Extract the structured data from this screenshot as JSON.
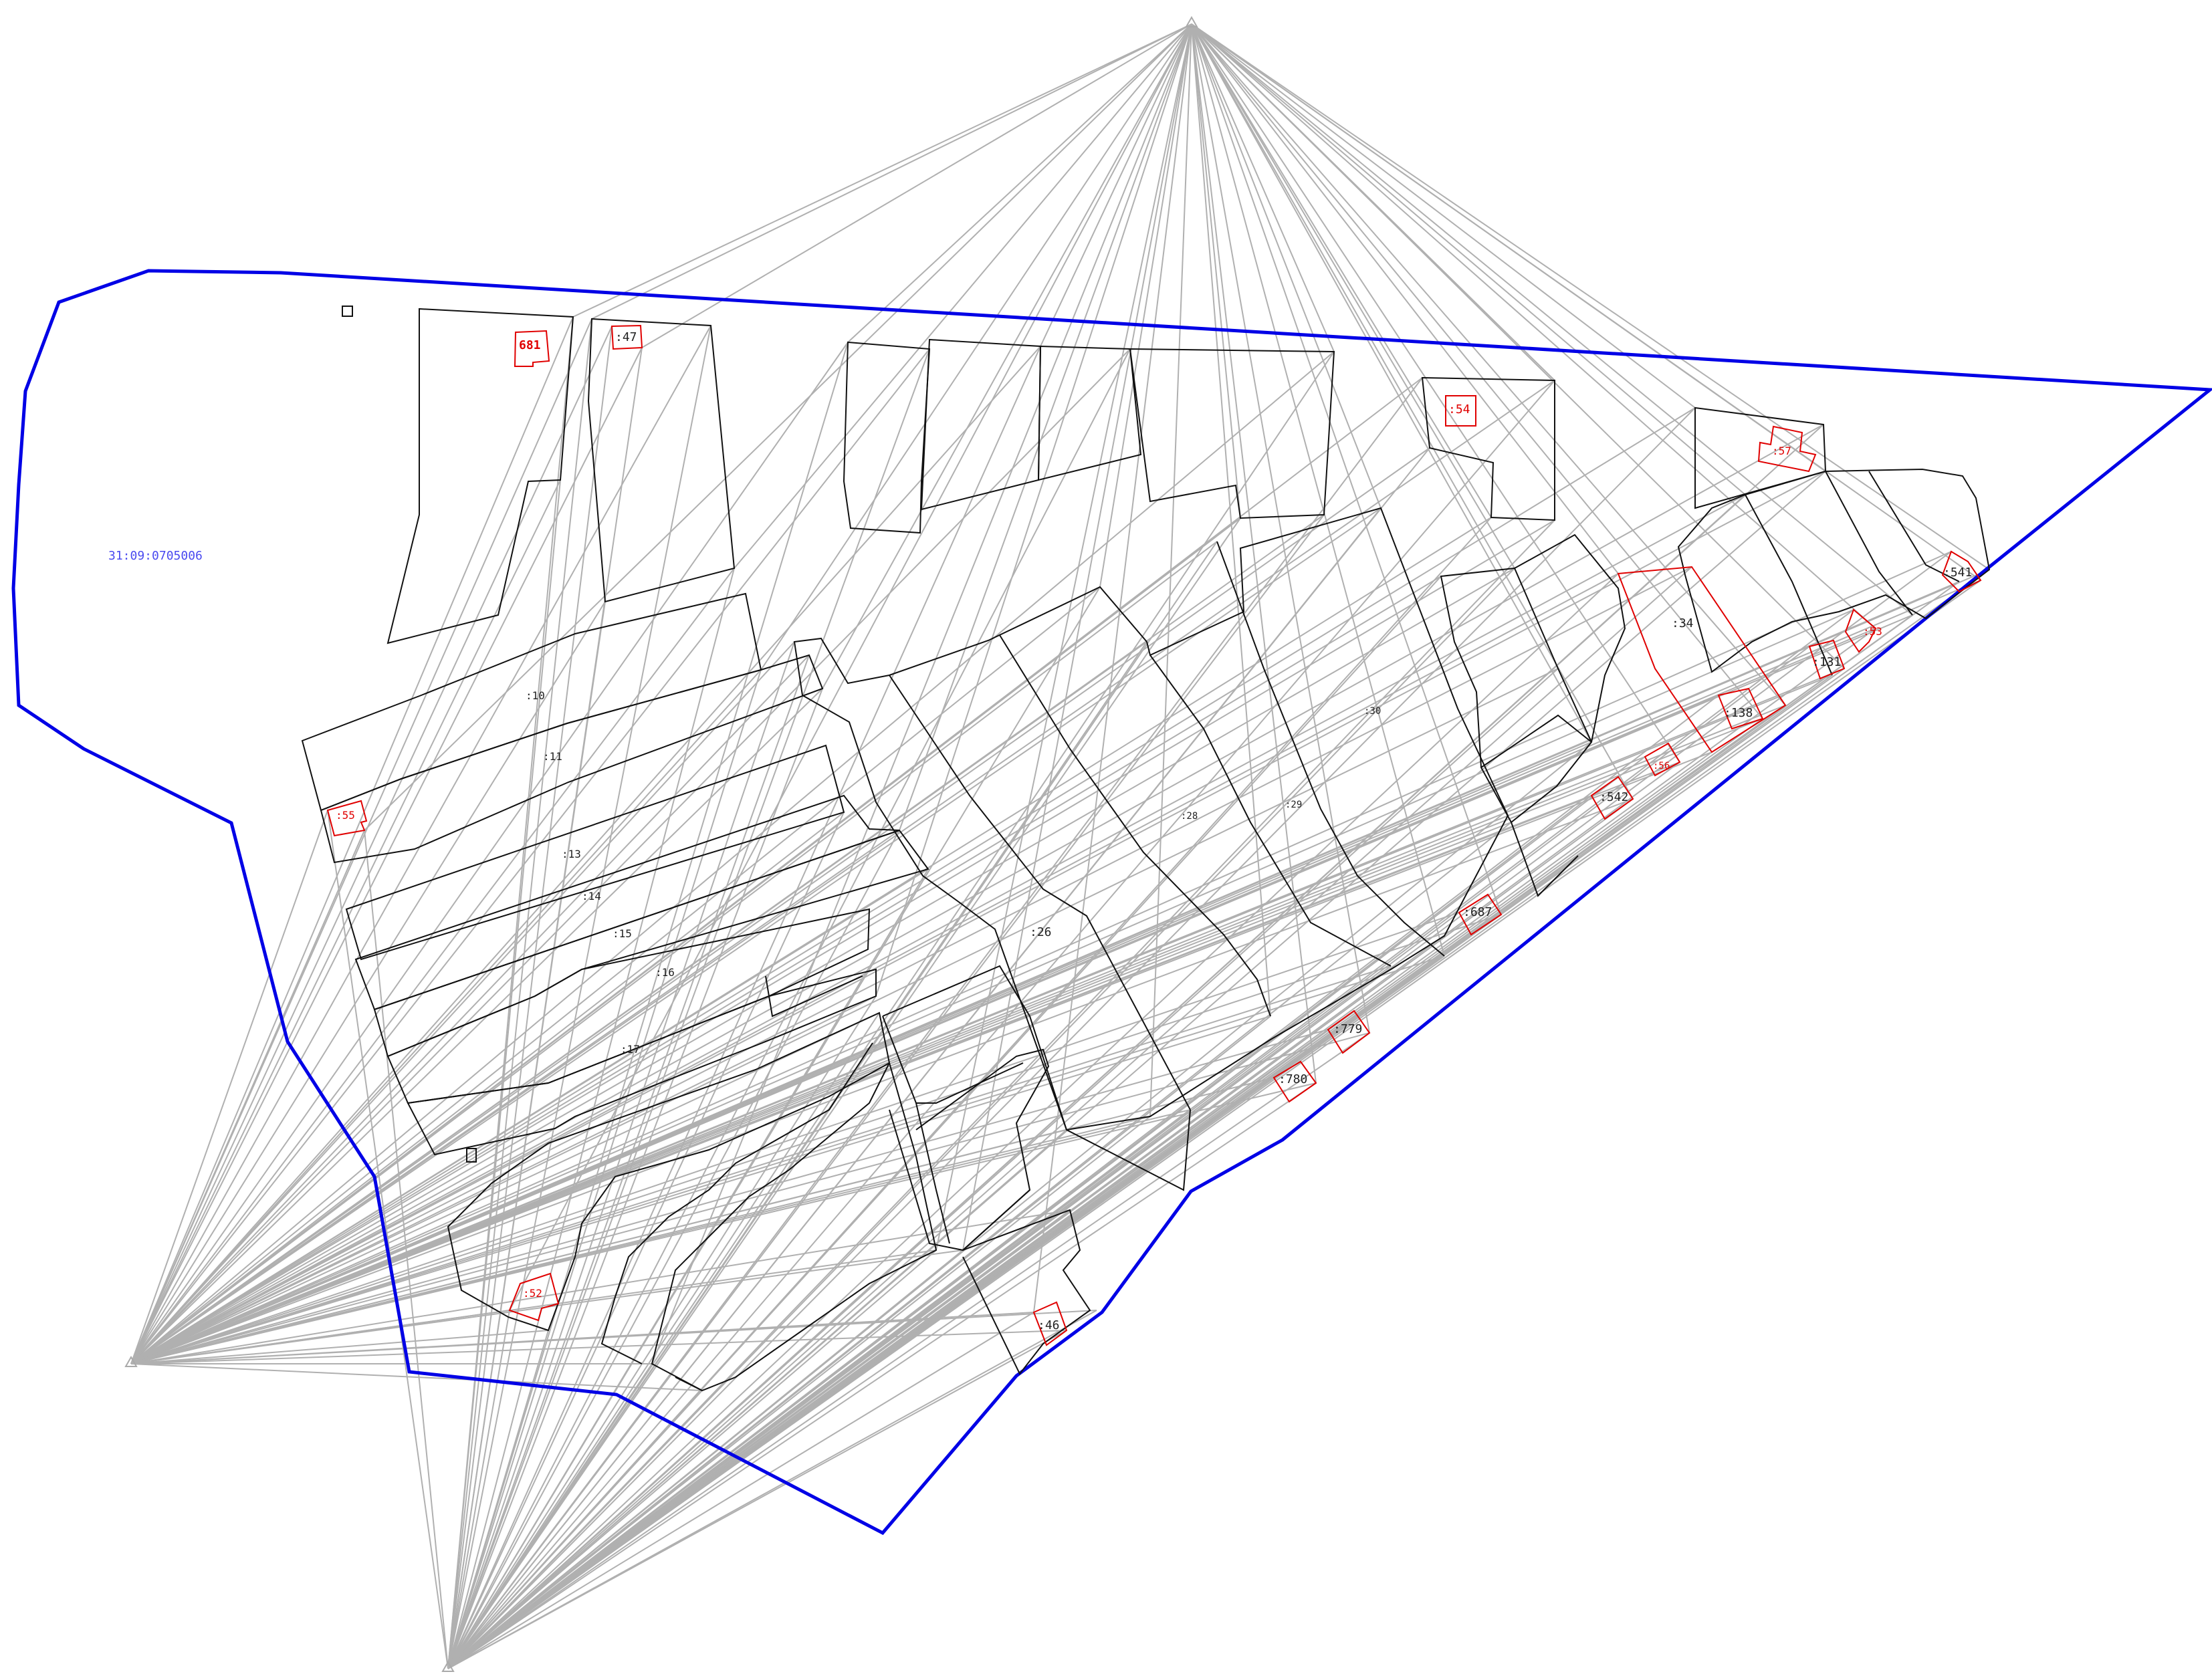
{
  "map": {
    "block_label": "31:09:0705006",
    "colors": {
      "boundary": "#0000e6",
      "parcel": "#111111",
      "building": "#e00000",
      "sightline": "#b0b0b0",
      "block_label": "#4a4af0"
    },
    "parcel_labels": [
      ":10",
      ":11",
      ":13",
      ":14",
      ":15",
      ":16",
      ":17",
      ":26",
      ":28",
      ":29",
      ":30",
      ":34"
    ],
    "building_labels": [
      "681",
      ":47",
      ":54",
      ":57",
      ":541",
      ":53",
      ":131",
      ":138",
      ":55",
      ":542",
      ":687",
      ":779",
      ":780",
      ":52",
      ":46",
      ":56"
    ]
  }
}
